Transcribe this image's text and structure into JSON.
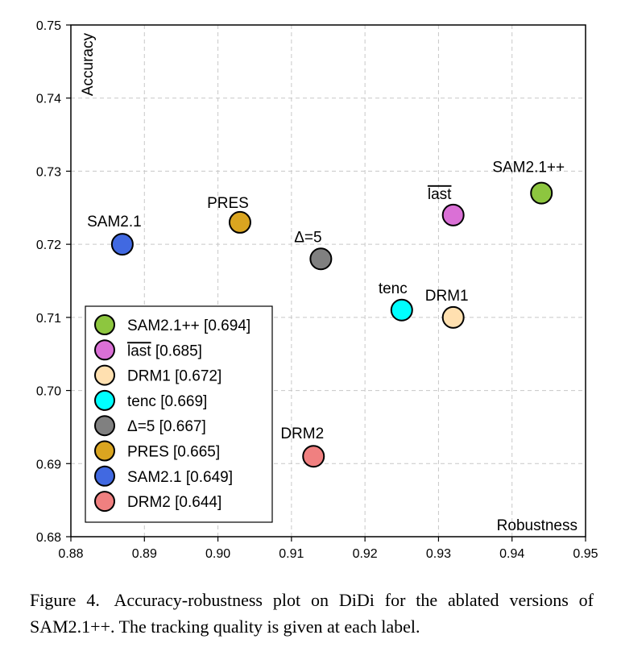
{
  "chart_data": {
    "type": "scatter",
    "xlabel": "Robustness",
    "ylabel": "Accuracy",
    "xlim": [
      0.88,
      0.95
    ],
    "ylim": [
      0.68,
      0.75
    ],
    "xticks": [
      "0.88",
      "0.89",
      "0.90",
      "0.91",
      "0.92",
      "0.93",
      "0.94",
      "0.95"
    ],
    "yticks": [
      "0.68",
      "0.69",
      "0.70",
      "0.71",
      "0.72",
      "0.73",
      "0.74",
      "0.75"
    ],
    "grid": true,
    "legend_position": "bottom-left",
    "points": [
      {
        "name": "SAM2.1++",
        "x": 0.944,
        "y": 0.727,
        "quality": "0.694",
        "color": "#8DC63F",
        "overline": false
      },
      {
        "name": "last",
        "x": 0.932,
        "y": 0.724,
        "quality": "0.685",
        "color": "#DA70D6",
        "overline": true
      },
      {
        "name": "DRM1",
        "x": 0.932,
        "y": 0.71,
        "quality": "0.672",
        "color": "#FFE0B0",
        "overline": false
      },
      {
        "name": "tenc",
        "x": 0.925,
        "y": 0.711,
        "quality": "0.669",
        "color": "#00FFFF",
        "overline": false
      },
      {
        "name": "Δ=5",
        "x": 0.914,
        "y": 0.718,
        "quality": "0.667",
        "color": "#808080",
        "overline": false
      },
      {
        "name": "PRES",
        "x": 0.903,
        "y": 0.723,
        "quality": "0.665",
        "color": "#DAA520",
        "overline": false
      },
      {
        "name": "SAM2.1",
        "x": 0.887,
        "y": 0.72,
        "quality": "0.649",
        "color": "#4169E1",
        "overline": false
      },
      {
        "name": "DRM2",
        "x": 0.913,
        "y": 0.691,
        "quality": "0.644",
        "color": "#F08080",
        "overline": false
      }
    ]
  },
  "caption": {
    "figure_number": "Figure 4.",
    "text": "Accuracy-robustness plot on DiDi for the ablated versions of SAM2.1++. The tracking quality is given at each label."
  }
}
